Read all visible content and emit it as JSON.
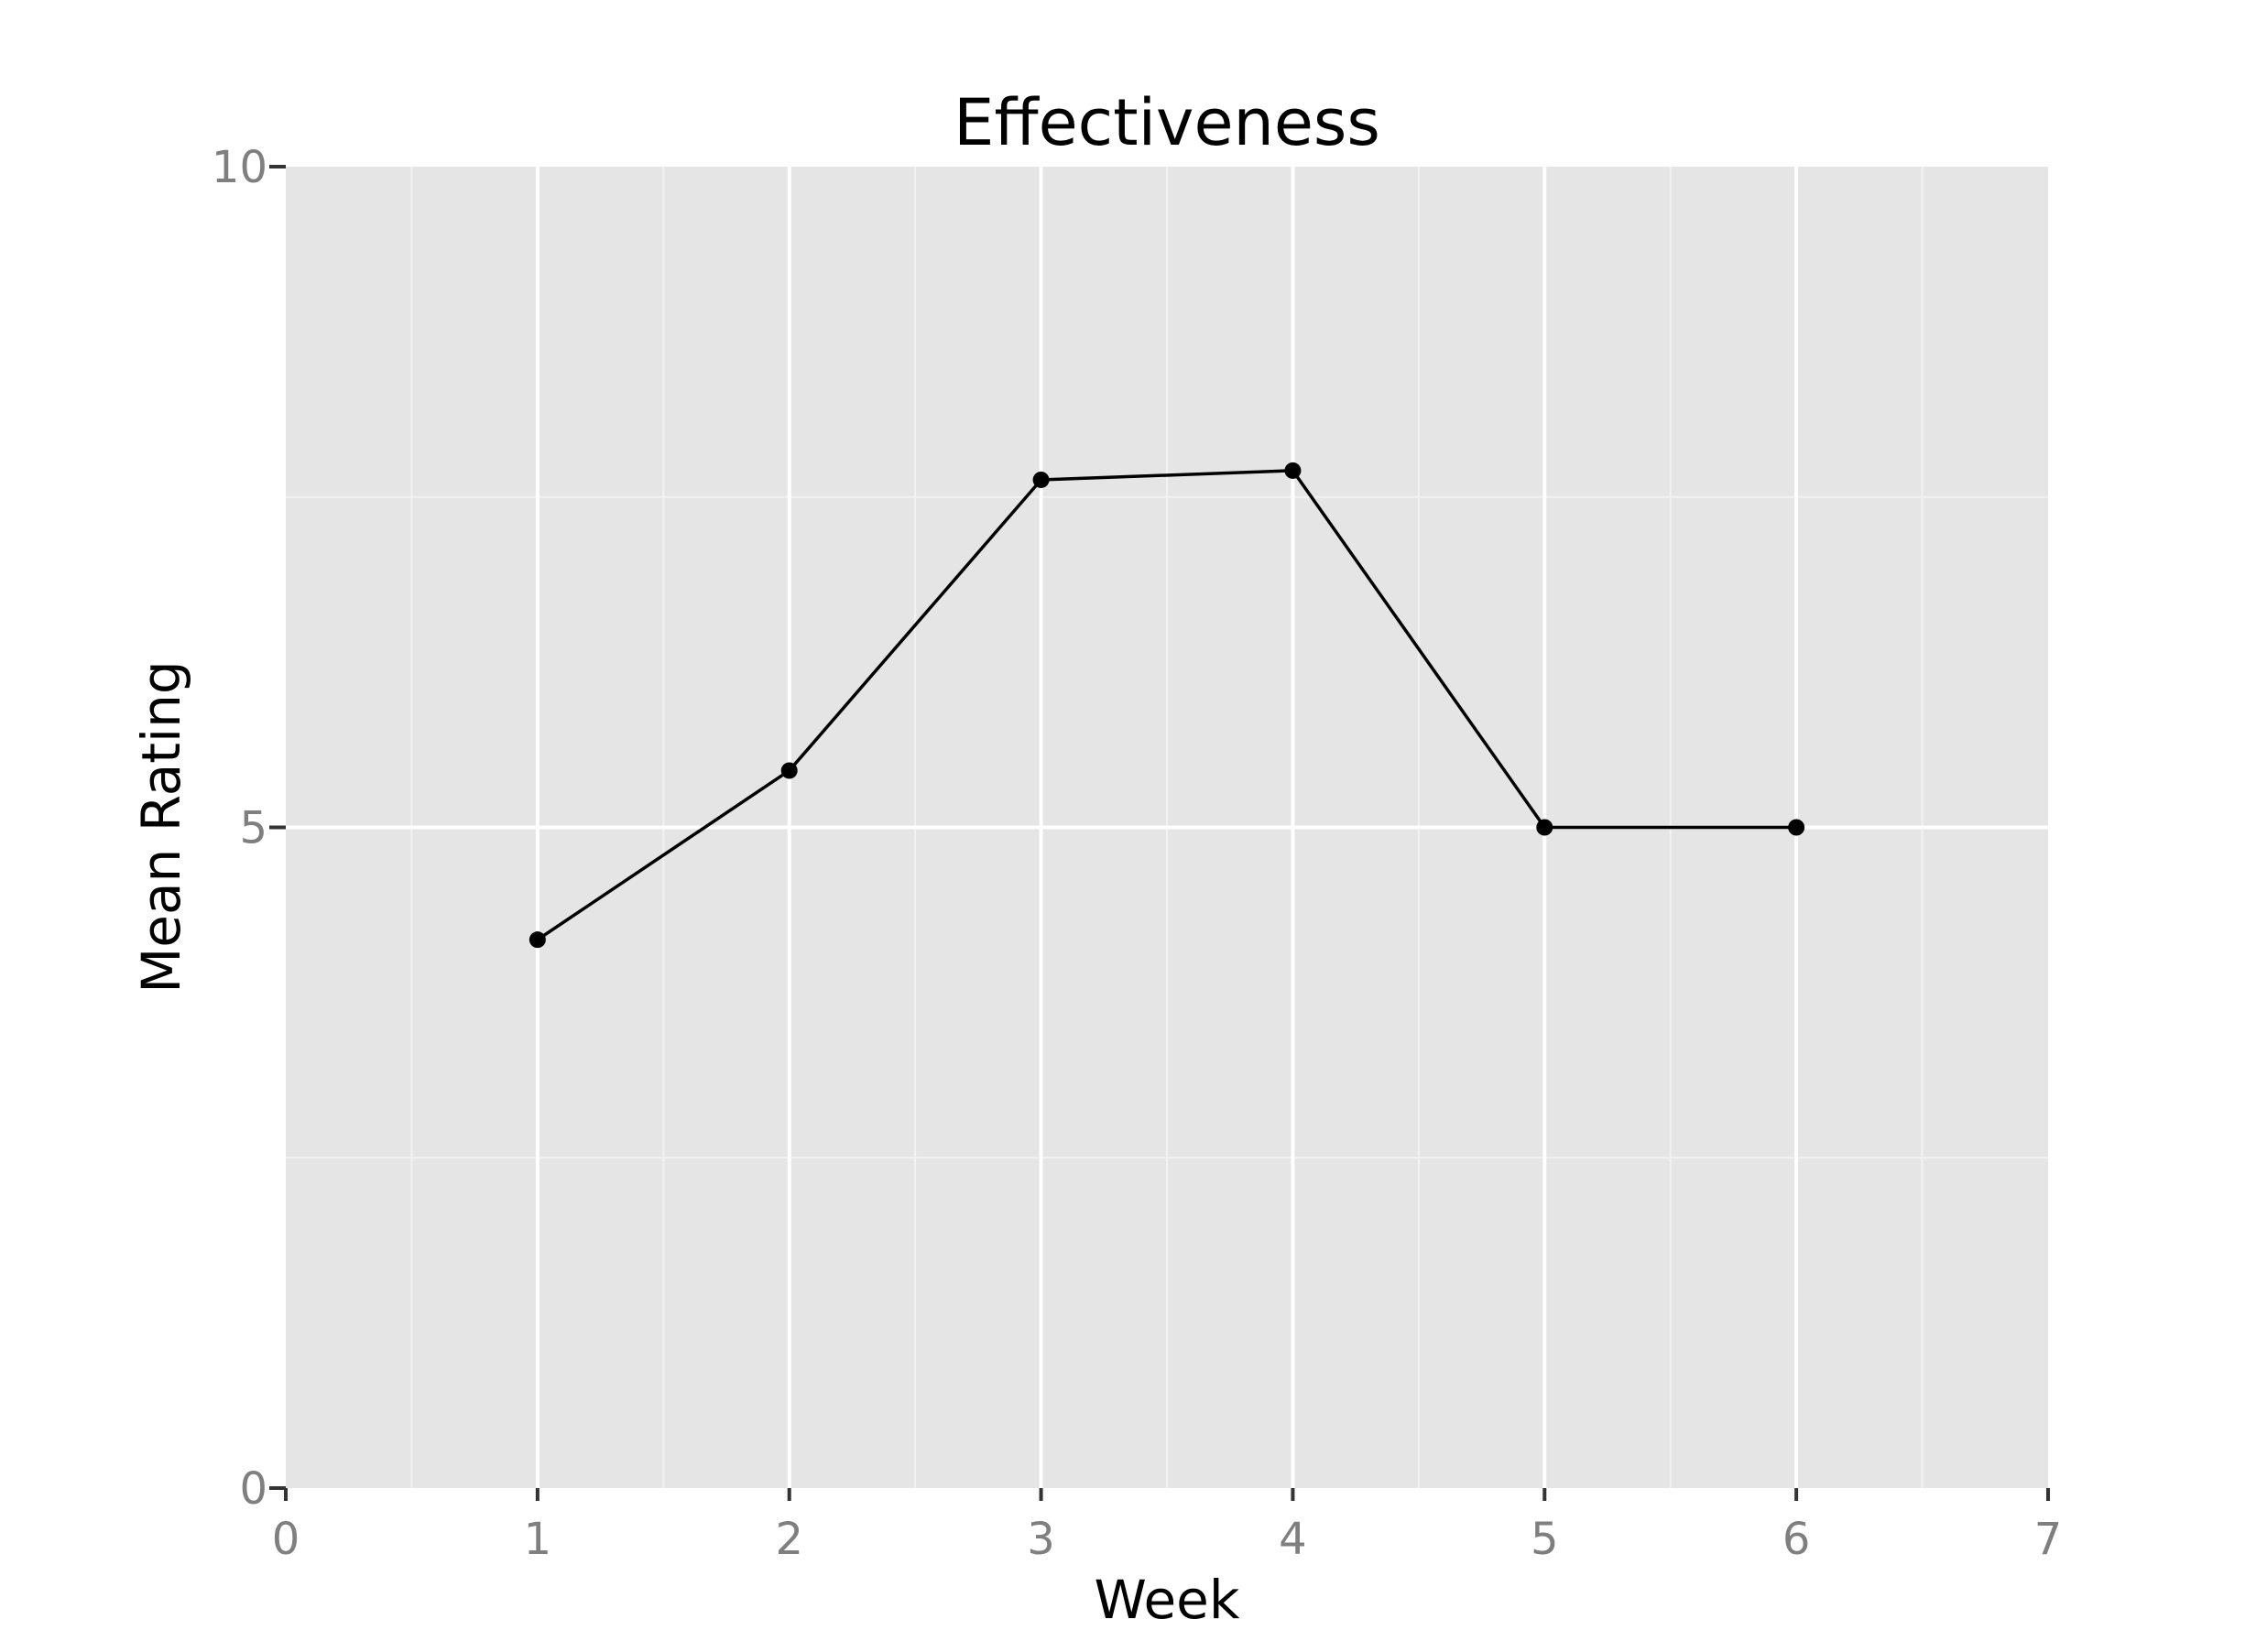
{
  "chart_data": {
    "type": "line",
    "title": "Effectiveness",
    "xlabel": "Week",
    "ylabel": "Mean Rating",
    "xlim": [
      0,
      7
    ],
    "ylim": [
      0,
      10
    ],
    "x_ticks": [
      0,
      1,
      2,
      3,
      4,
      5,
      6,
      7
    ],
    "y_ticks": [
      0,
      5,
      10
    ],
    "grid": true,
    "legend": "none",
    "series": [
      {
        "x": [
          1,
          2,
          3,
          4,
          5,
          6
        ],
        "y": [
          4.15,
          5.43,
          7.63,
          7.7,
          5.0,
          5.0
        ]
      }
    ],
    "colors": {
      "panel_background": "#e5e5e5",
      "grid_major": "#ffffff",
      "grid_minor": "#f2f2f2",
      "line": "#000000",
      "tick_label": "#7f7f7f"
    }
  }
}
